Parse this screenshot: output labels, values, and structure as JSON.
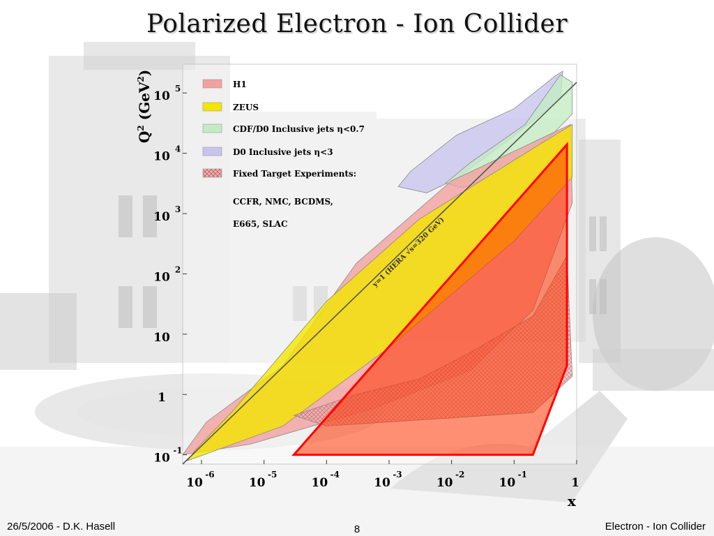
{
  "slide": {
    "title": "Polarized Electron - Ion Collider",
    "footer_left": "26/5/2006 - D.K. Hasell",
    "footer_center": "8",
    "footer_right": "Electron - Ion Collider"
  },
  "chart_data": {
    "type": "area",
    "xlabel": "x",
    "ylabel_base": "Q",
    "ylabel_sup": "2",
    "ylabel_unit_open": " (GeV",
    "ylabel_unit_sup": "2",
    "ylabel_unit_close": ")",
    "x_scale": "log",
    "y_scale": "log",
    "xlim": [
      5e-07,
      1
    ],
    "ylim": [
      0.07,
      300000
    ],
    "x_ticks": [
      {
        "value": 1e-06,
        "base": "10",
        "exp": "-6"
      },
      {
        "value": 1e-05,
        "base": "10",
        "exp": "-5"
      },
      {
        "value": 0.0001,
        "base": "10",
        "exp": "-4"
      },
      {
        "value": 0.001,
        "base": "10",
        "exp": "-3"
      },
      {
        "value": 0.01,
        "base": "10",
        "exp": "-2"
      },
      {
        "value": 0.1,
        "base": "10",
        "exp": "-1"
      },
      {
        "value": 1,
        "base": "1",
        "exp": ""
      }
    ],
    "y_ticks": [
      {
        "value": 0.1,
        "base": "10",
        "exp": "-1"
      },
      {
        "value": 1,
        "base": "1",
        "exp": ""
      },
      {
        "value": 10,
        "base": "10",
        "exp": ""
      },
      {
        "value": 100,
        "base": "10",
        "exp": "2"
      },
      {
        "value": 1000,
        "base": "10",
        "exp": "3"
      },
      {
        "value": 10000,
        "base": "10",
        "exp": "4"
      },
      {
        "value": 100000,
        "base": "10",
        "exp": "5"
      }
    ],
    "legend": [
      {
        "label": "H1",
        "color": "#f4a0a0"
      },
      {
        "label": "ZEUS",
        "color": "#f2e600"
      },
      {
        "label": "CDF/D0   Inclusive jets η<0.7",
        "color": "#c4ecc4"
      },
      {
        "label": "D0  Inclusive jets η<3",
        "color": "#c8c4ee"
      },
      {
        "label": "Fixed Target Experiments:",
        "color": "#b0e4e0"
      }
    ],
    "legend_notes": [
      "CCFR, NMC, BCDMS,",
      "E665, SLAC"
    ],
    "kinematic_limit_label": "y=1 (HERA √s=320 GeV)",
    "series": [
      {
        "name": "D0  Inclusive jets η<3",
        "color": "#c8c4ee",
        "points": [
          [
            0.0014,
            2800
          ],
          [
            0.0022,
            5000
          ],
          [
            0.012,
            20000
          ],
          [
            0.1,
            55000
          ],
          [
            0.45,
            190000
          ],
          [
            0.6,
            230000
          ],
          [
            0.55,
            80000
          ],
          [
            0.09,
            18000
          ],
          [
            0.012,
            3800
          ],
          [
            0.004,
            2200
          ]
        ]
      },
      {
        "name": "CDF/D0   Inclusive jets η<0.7",
        "color": "#c4ecc4",
        "points": [
          [
            0.008,
            3200
          ],
          [
            0.02,
            7000
          ],
          [
            0.15,
            30000
          ],
          [
            0.55,
            200000
          ],
          [
            0.85,
            150000
          ],
          [
            0.85,
            45000
          ],
          [
            0.4,
            20000
          ],
          [
            0.06,
            4500
          ],
          [
            0.015,
            2700
          ]
        ]
      },
      {
        "name": "H1",
        "color": "#f4a0a0",
        "points": [
          [
            5e-07,
            0.1
          ],
          [
            1.2e-06,
            0.35
          ],
          [
            2e-05,
            3
          ],
          [
            0.0003,
            150
          ],
          [
            0.01,
            3500
          ],
          [
            0.8,
            30000
          ],
          [
            0.85,
            1500
          ],
          [
            0.2,
            25
          ],
          [
            0.02,
            2.5
          ],
          [
            0.0006,
            0.6
          ],
          [
            6e-06,
            0.15
          ]
        ]
      },
      {
        "name": "ZEUS",
        "color": "#f2e600",
        "points": [
          [
            6e-07,
            0.08
          ],
          [
            8e-07,
            0.12
          ],
          [
            3e-06,
            0.5
          ],
          [
            0.0001,
            35
          ],
          [
            0.003,
            800
          ],
          [
            0.2,
            12000
          ],
          [
            0.85,
            30000
          ],
          [
            0.85,
            4000
          ],
          [
            0.1,
            350
          ],
          [
            0.001,
            6
          ],
          [
            2e-05,
            0.3
          ]
        ]
      },
      {
        "name": "Fixed Target Experiments:",
        "color": "#d88888",
        "points": [
          [
            3e-05,
            0.45
          ],
          [
            0.0003,
            1.0
          ],
          [
            0.003,
            1.8
          ],
          [
            0.02,
            5
          ],
          [
            0.2,
            20
          ],
          [
            0.7,
            200
          ],
          [
            0.85,
            2
          ],
          [
            0.2,
            0.5
          ],
          [
            0.0001,
            0.3
          ]
        ]
      }
    ],
    "kinematic_limit_y1": {
      "x1": 5e-07,
      "y1": 0.07,
      "x2": 1,
      "y2": 150000
    },
    "eic_region": {
      "color": "#ff2200",
      "points": [
        [
          3e-05,
          0.1
        ],
        [
          0.7,
          14000
        ],
        [
          0.7,
          3
        ],
        [
          0.2,
          0.1
        ]
      ]
    },
    "grid": false
  }
}
